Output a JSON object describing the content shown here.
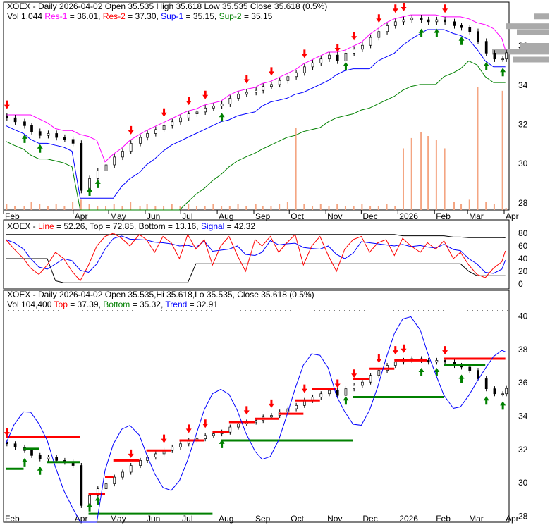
{
  "header": {
    "line1": "XOEX - Daily 2026-04-02 Open 35.535  High 35.618  Low 35.535  Close 35.618 (0.5%)",
    "vol": "Vol 1,044 ",
    "res1": "Res-1",
    "res1_val": " = 36.01, ",
    "res2": "Res-2",
    "res2_val": " = 37.30, ",
    "sup1": "Sup-1",
    "sup1_val": " = 35.15, ",
    "sup2": "Sup-2",
    "sup2_val": " = 35.15"
  },
  "stoch_header": {
    "prefix": "XOEX - ",
    "line": "Line",
    "line_val": " = 52.26, Top = 72.85, Bottom = 13.16, ",
    "signal": "Signal",
    "signal_val": " = 42.32"
  },
  "bottom_header": {
    "line1": "XOEX - Daily 2026-04-02 Open 35.535,Hi 35.618,Lo 35.535, Close 35.618 (0.5%)",
    "vol": "Vol 104,400 ",
    "top": "Top",
    "top_val": " = 37.39, ",
    "bottom": "Bottom",
    "bottom_val": " = 35.32, ",
    "trend": "Trend",
    "trend_val": " = 32.91"
  },
  "colors": {
    "res1": "#ff00ff",
    "res2": "#ff0000",
    "sup1": "#0000ff",
    "sup2": "#008000",
    "volume": "#f4a582",
    "buy": "#008000",
    "sell": "#ff0000"
  },
  "chart_data": [
    {
      "type": "candlestick",
      "name": "price",
      "x_tick_labels": [
        "Feb",
        "Apr",
        "May",
        "Jun",
        "Jul",
        "Aug",
        "Sep",
        "Oct",
        "Nov",
        "Dec",
        "2026",
        "Feb",
        "Mar",
        "Apr"
      ],
      "x_tick_dates": [
        "2025-02-01",
        "2025-04-01",
        "2025-05-01",
        "2025-06-01",
        "2025-07-01",
        "2025-08-01",
        "2025-09-01",
        "2025-10-01",
        "2025-11-01",
        "2025-12-01",
        "2026-01-01",
        "2026-02-01",
        "2026-03-01",
        "2026-04-01"
      ],
      "y_ticks": [
        28,
        30,
        32,
        34,
        36
      ],
      "ylim": [
        27.6,
        38.2
      ],
      "dates": [
        "2025-02-03",
        "2025-02-10",
        "2025-02-18",
        "2025-02-24",
        "2025-03-03",
        "2025-03-10",
        "2025-03-17",
        "2025-03-24",
        "2025-03-31",
        "2025-04-07",
        "2025-04-14",
        "2025-04-21",
        "2025-04-28",
        "2025-05-05",
        "2025-05-12",
        "2025-05-19",
        "2025-05-27",
        "2025-06-02",
        "2025-06-09",
        "2025-06-16",
        "2025-06-23",
        "2025-06-30",
        "2025-07-07",
        "2025-07-14",
        "2025-07-21",
        "2025-07-28",
        "2025-08-04",
        "2025-08-11",
        "2025-08-18",
        "2025-08-25",
        "2025-09-02",
        "2025-09-08",
        "2025-09-15",
        "2025-09-22",
        "2025-09-29",
        "2025-10-06",
        "2025-10-13",
        "2025-10-20",
        "2025-10-27",
        "2025-11-03",
        "2025-11-10",
        "2025-11-17",
        "2025-11-24",
        "2025-12-01",
        "2025-12-08",
        "2025-12-15",
        "2025-12-22",
        "2025-12-29",
        "2026-01-05",
        "2026-01-12",
        "2026-01-20",
        "2026-01-26",
        "2026-02-02",
        "2026-02-09",
        "2026-02-17",
        "2026-02-23",
        "2026-03-02",
        "2026-03-09",
        "2026-03-16",
        "2026-03-23",
        "2026-03-30",
        "2026-04-02"
      ],
      "close": [
        32.3,
        32.1,
        31.9,
        31.6,
        31.4,
        31.5,
        31.3,
        31.2,
        31.0,
        28.6,
        29.2,
        29.6,
        29.9,
        30.3,
        30.6,
        31.0,
        31.3,
        31.5,
        31.7,
        31.9,
        32.1,
        32.3,
        32.5,
        32.6,
        32.8,
        32.9,
        33.0,
        33.3,
        33.5,
        33.6,
        33.7,
        33.9,
        34.0,
        34.2,
        34.4,
        34.6,
        34.9,
        35.1,
        35.3,
        35.5,
        35.2,
        35.6,
        35.8,
        36.0,
        36.4,
        36.7,
        37.0,
        37.2,
        37.3,
        37.4,
        37.3,
        37.2,
        37.3,
        37.2,
        37.0,
        36.9,
        36.7,
        36.2,
        35.6,
        35.3,
        35.3,
        35.618
      ],
      "volume": [
        3,
        2,
        2,
        4,
        3,
        2,
        3,
        2,
        4,
        5,
        3,
        2,
        2,
        3,
        2,
        4,
        2,
        3,
        2,
        2,
        3,
        2,
        3,
        2,
        2,
        3,
        2,
        2,
        3,
        2,
        3,
        2,
        2,
        3,
        4,
        40,
        3,
        2,
        3,
        2,
        3,
        2,
        2,
        3,
        2,
        2,
        3,
        2,
        30,
        35,
        38,
        36,
        34,
        30,
        4,
        3,
        5,
        60,
        4,
        3,
        58,
        1
      ],
      "sell_dates": [
        "2025-02-03",
        "2025-05-19",
        "2025-06-16",
        "2025-07-07",
        "2025-07-21",
        "2025-08-25",
        "2025-09-15",
        "2025-10-13",
        "2025-11-10",
        "2025-11-24",
        "2025-12-15",
        "2025-12-29",
        "2026-01-05",
        "2026-02-09"
      ],
      "buy_dates": [
        "2025-02-18",
        "2025-03-03",
        "2025-04-14",
        "2025-04-21",
        "2025-08-04",
        "2025-11-17",
        "2026-01-20",
        "2026-02-02",
        "2026-02-23",
        "2026-03-16",
        "2026-03-30"
      ]
    },
    {
      "type": "line",
      "name": "stochastic",
      "y_ticks": [
        0,
        20,
        40,
        60,
        80
      ],
      "ylim": [
        0,
        85
      ],
      "line": [
        70,
        55,
        40,
        25,
        15,
        30,
        50,
        40,
        20,
        5,
        30,
        60,
        75,
        80,
        72,
        60,
        78,
        70,
        50,
        75,
        65,
        40,
        78,
        55,
        70,
        30,
        60,
        75,
        45,
        20,
        70,
        60,
        75,
        50,
        65,
        78,
        30,
        60,
        75,
        45,
        20,
        55,
        70,
        75,
        50,
        65,
        70,
        45,
        72,
        60,
        50,
        65,
        55,
        68,
        40,
        50,
        30,
        15,
        10,
        25,
        35,
        52.26
      ],
      "top": [
        78,
        78,
        78,
        78,
        78,
        78,
        78,
        78,
        78,
        78,
        78,
        78,
        78,
        78,
        78,
        78,
        78,
        78,
        78,
        78,
        78,
        78,
        78,
        78,
        78,
        78,
        78,
        78,
        78,
        78,
        78,
        78,
        78,
        78,
        78,
        78,
        78,
        78,
        78,
        78,
        78,
        78,
        78,
        78,
        78,
        78,
        78,
        78,
        76,
        76,
        76,
        76,
        76,
        76,
        74,
        74,
        73,
        73,
        73,
        73,
        73,
        72.85
      ],
      "bottom": [
        40,
        40,
        40,
        40,
        40,
        40,
        5,
        2,
        2,
        2,
        2,
        2,
        2,
        2,
        2,
        2,
        2,
        2,
        2,
        2,
        2,
        2,
        2,
        32,
        32,
        32,
        32,
        32,
        32,
        32,
        32,
        32,
        32,
        32,
        32,
        32,
        32,
        32,
        32,
        32,
        32,
        32,
        32,
        32,
        32,
        32,
        32,
        32,
        32,
        32,
        32,
        32,
        32,
        32,
        32,
        32,
        20,
        13,
        13,
        13,
        13,
        13.16
      ]
    },
    {
      "type": "candlestick",
      "name": "trend",
      "y_ticks": [
        28,
        30,
        32,
        34,
        36,
        38,
        40
      ],
      "ylim": [
        27.6,
        41.5
      ]
    }
  ]
}
